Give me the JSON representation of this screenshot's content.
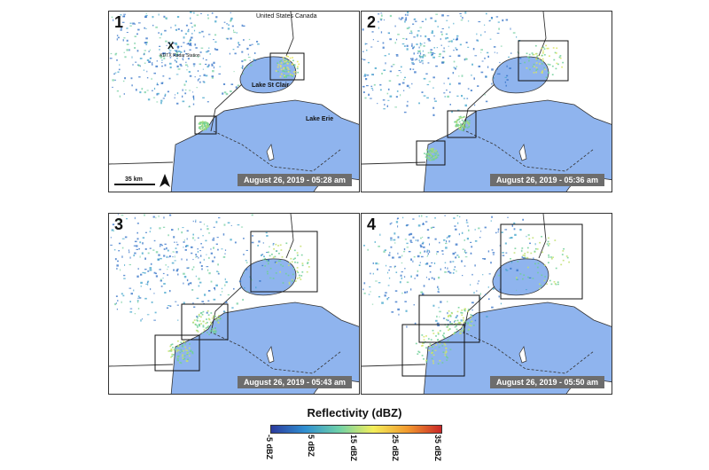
{
  "panels": [
    {
      "number": "1",
      "timestamp": "August 26, 2019 - 05:28 am"
    },
    {
      "number": "2",
      "timestamp": "August 26, 2019 - 05:36 am"
    },
    {
      "number": "3",
      "timestamp": "August 26, 2019 - 05:43 am"
    },
    {
      "number": "4",
      "timestamp": "August 26, 2019 - 05:50 am"
    }
  ],
  "map_labels": {
    "border": "United States  Canada",
    "station_marker": "X",
    "station_name": "KDTX Radar Station",
    "lake_st_clair": "Lake St Clair",
    "lake_erie": "Lake Erie",
    "scale_bar": "35 km",
    "north_arrow": "N"
  },
  "legend": {
    "title": "Reflectivity (dBZ)",
    "ticks": [
      "-5 dBZ",
      "5 dBZ",
      "15 dBZ",
      "25 dBZ",
      "35 dBZ"
    ],
    "colors": [
      "#2c3b9e",
      "#2f8fd1",
      "#6fd1a8",
      "#f3ee5a",
      "#f29a2e",
      "#c92727"
    ]
  }
}
